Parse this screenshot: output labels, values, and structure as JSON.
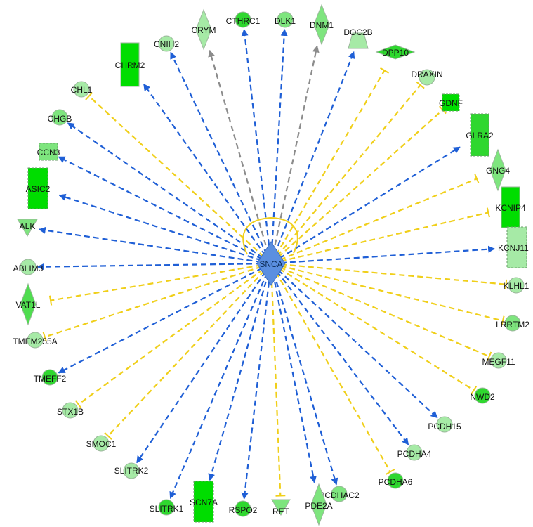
{
  "hub": {
    "label": "SNCA",
    "color": "#5b8fe0"
  },
  "colors": {
    "activation": "#1f5fd6",
    "inhibition": "#f0cf1a",
    "unknown": "#8c8c8c",
    "light_green": "#a6eaa6",
    "mid_green": "#4fdd4f",
    "bright_green": "#00dd00",
    "outline": "#9ab69a"
  },
  "nodes": [
    {
      "id": "CRYM",
      "label": "CRYM",
      "shape": "diamond",
      "fill": "#a6eaa6",
      "edge": "unknown"
    },
    {
      "id": "CTHRC1",
      "label": "CTHRC1",
      "shape": "circle",
      "fill": "#2fd72f",
      "edge": "activation"
    },
    {
      "id": "DLK1",
      "label": "DLK1",
      "shape": "circle",
      "fill": "#7ee57e",
      "edge": "activation"
    },
    {
      "id": "DNM1",
      "label": "DNM1",
      "shape": "diamond",
      "fill": "#7ee57e",
      "edge": "unknown"
    },
    {
      "id": "DOC2B",
      "label": "DOC2B",
      "shape": "trapezoid",
      "fill": "#a6eaa6",
      "edge": "activation"
    },
    {
      "id": "DPP10",
      "label": "DPP10",
      "shape": "flat-diamond",
      "fill": "#2fd72f",
      "edge": "inhibition"
    },
    {
      "id": "DRAXIN",
      "label": "DRAXIN",
      "shape": "circle",
      "fill": "#a6eaa6",
      "edge": "inhibition"
    },
    {
      "id": "GDNF",
      "label": "GDNF",
      "shape": "square-dashed",
      "fill": "#00dd00",
      "edge": "inhibition"
    },
    {
      "id": "GLRA2",
      "label": "GLRA2",
      "shape": "rect-dashed",
      "fill": "#2fd72f",
      "edge": "activation"
    },
    {
      "id": "GNG4",
      "label": "GNG4",
      "shape": "diamond",
      "fill": "#7ee57e",
      "edge": "inhibition"
    },
    {
      "id": "KCNIP4",
      "label": "KCNIP4",
      "shape": "rect",
      "fill": "#00dd00",
      "edge": "inhibition"
    },
    {
      "id": "KCNJ11",
      "label": "KCNJ11",
      "shape": "rect-dashed",
      "fill": "#a6eaa6",
      "edge": "activation"
    },
    {
      "id": "KLHL1",
      "label": "KLHL1",
      "shape": "circle",
      "fill": "#a6eaa6",
      "edge": "inhibition"
    },
    {
      "id": "LRRTM2",
      "label": "LRRTM2",
      "shape": "circle",
      "fill": "#7ee57e",
      "edge": "inhibition"
    },
    {
      "id": "MEGF11",
      "label": "MEGF11",
      "shape": "circle",
      "fill": "#a6eaa6",
      "edge": "inhibition"
    },
    {
      "id": "NWD2",
      "label": "NWD2",
      "shape": "circle",
      "fill": "#2fd72f",
      "edge": "inhibition"
    },
    {
      "id": "PCDH15",
      "label": "PCDH15",
      "shape": "circle",
      "fill": "#a6eaa6",
      "edge": "activation"
    },
    {
      "id": "PCDHA4",
      "label": "PCDHA4",
      "shape": "circle",
      "fill": "#a6eaa6",
      "edge": "activation"
    },
    {
      "id": "PCDHA6",
      "label": "PCDHA6",
      "shape": "circle",
      "fill": "#2fd72f",
      "edge": "inhibition"
    },
    {
      "id": "PCDHAC2",
      "label": "PCDHAC2",
      "shape": "circle",
      "fill": "#7ee57e",
      "edge": "activation"
    },
    {
      "id": "PDE2A",
      "label": "PDE2A",
      "shape": "diamond",
      "fill": "#7ee57e",
      "edge": "activation"
    },
    {
      "id": "RET",
      "label": "RET",
      "shape": "triangle-down",
      "fill": "#7ee57e",
      "edge": "inhibition"
    },
    {
      "id": "RSPO2",
      "label": "RSPO2",
      "shape": "circle",
      "fill": "#2fd72f",
      "edge": "activation"
    },
    {
      "id": "SCN7A",
      "label": "SCN7A",
      "shape": "rect-dashed",
      "fill": "#00dd00",
      "edge": "activation"
    },
    {
      "id": "SLITRK1",
      "label": "SLITRK1",
      "shape": "circle",
      "fill": "#2fd72f",
      "edge": "activation"
    },
    {
      "id": "SLITRK2",
      "label": "SLITRK2",
      "shape": "circle",
      "fill": "#a6eaa6",
      "edge": "activation"
    },
    {
      "id": "SMOC1",
      "label": "SMOC1",
      "shape": "circle",
      "fill": "#a6eaa6",
      "edge": "inhibition"
    },
    {
      "id": "STX1B",
      "label": "STX1B",
      "shape": "circle",
      "fill": "#a6eaa6",
      "edge": "inhibition"
    },
    {
      "id": "TMEFF2",
      "label": "TMEFF2",
      "shape": "circle",
      "fill": "#2fd72f",
      "edge": "activation"
    },
    {
      "id": "TMEM255A",
      "label": "TMEM255A",
      "shape": "circle",
      "fill": "#a6eaa6",
      "edge": "inhibition"
    },
    {
      "id": "VAT1L",
      "label": "VAT1L",
      "shape": "diamond",
      "fill": "#4fdd4f",
      "edge": "inhibition"
    },
    {
      "id": "ABLIM3",
      "label": "ABLIM3",
      "shape": "circle",
      "fill": "#a6eaa6",
      "edge": "activation"
    },
    {
      "id": "ALK",
      "label": "ALK",
      "shape": "triangle-down",
      "fill": "#7ee57e",
      "edge": "activation"
    },
    {
      "id": "ASIC2",
      "label": "ASIC2",
      "shape": "rect-dashed",
      "fill": "#00dd00",
      "edge": "activation"
    },
    {
      "id": "CCN3",
      "label": "CCN3",
      "shape": "square-dashed",
      "fill": "#7ee57e",
      "edge": "activation"
    },
    {
      "id": "CHGB",
      "label": "CHGB",
      "shape": "circle",
      "fill": "#7ee57e",
      "edge": "activation"
    },
    {
      "id": "CHL1",
      "label": "CHL1",
      "shape": "circle",
      "fill": "#a6eaa6",
      "edge": "inhibition"
    },
    {
      "id": "CHRM2",
      "label": "CHRM2",
      "shape": "rect",
      "fill": "#00dd00",
      "edge": "activation"
    },
    {
      "id": "CNIH2",
      "label": "CNIH2",
      "shape": "circle",
      "fill": "#a6eaa6",
      "edge": "activation"
    }
  ]
}
